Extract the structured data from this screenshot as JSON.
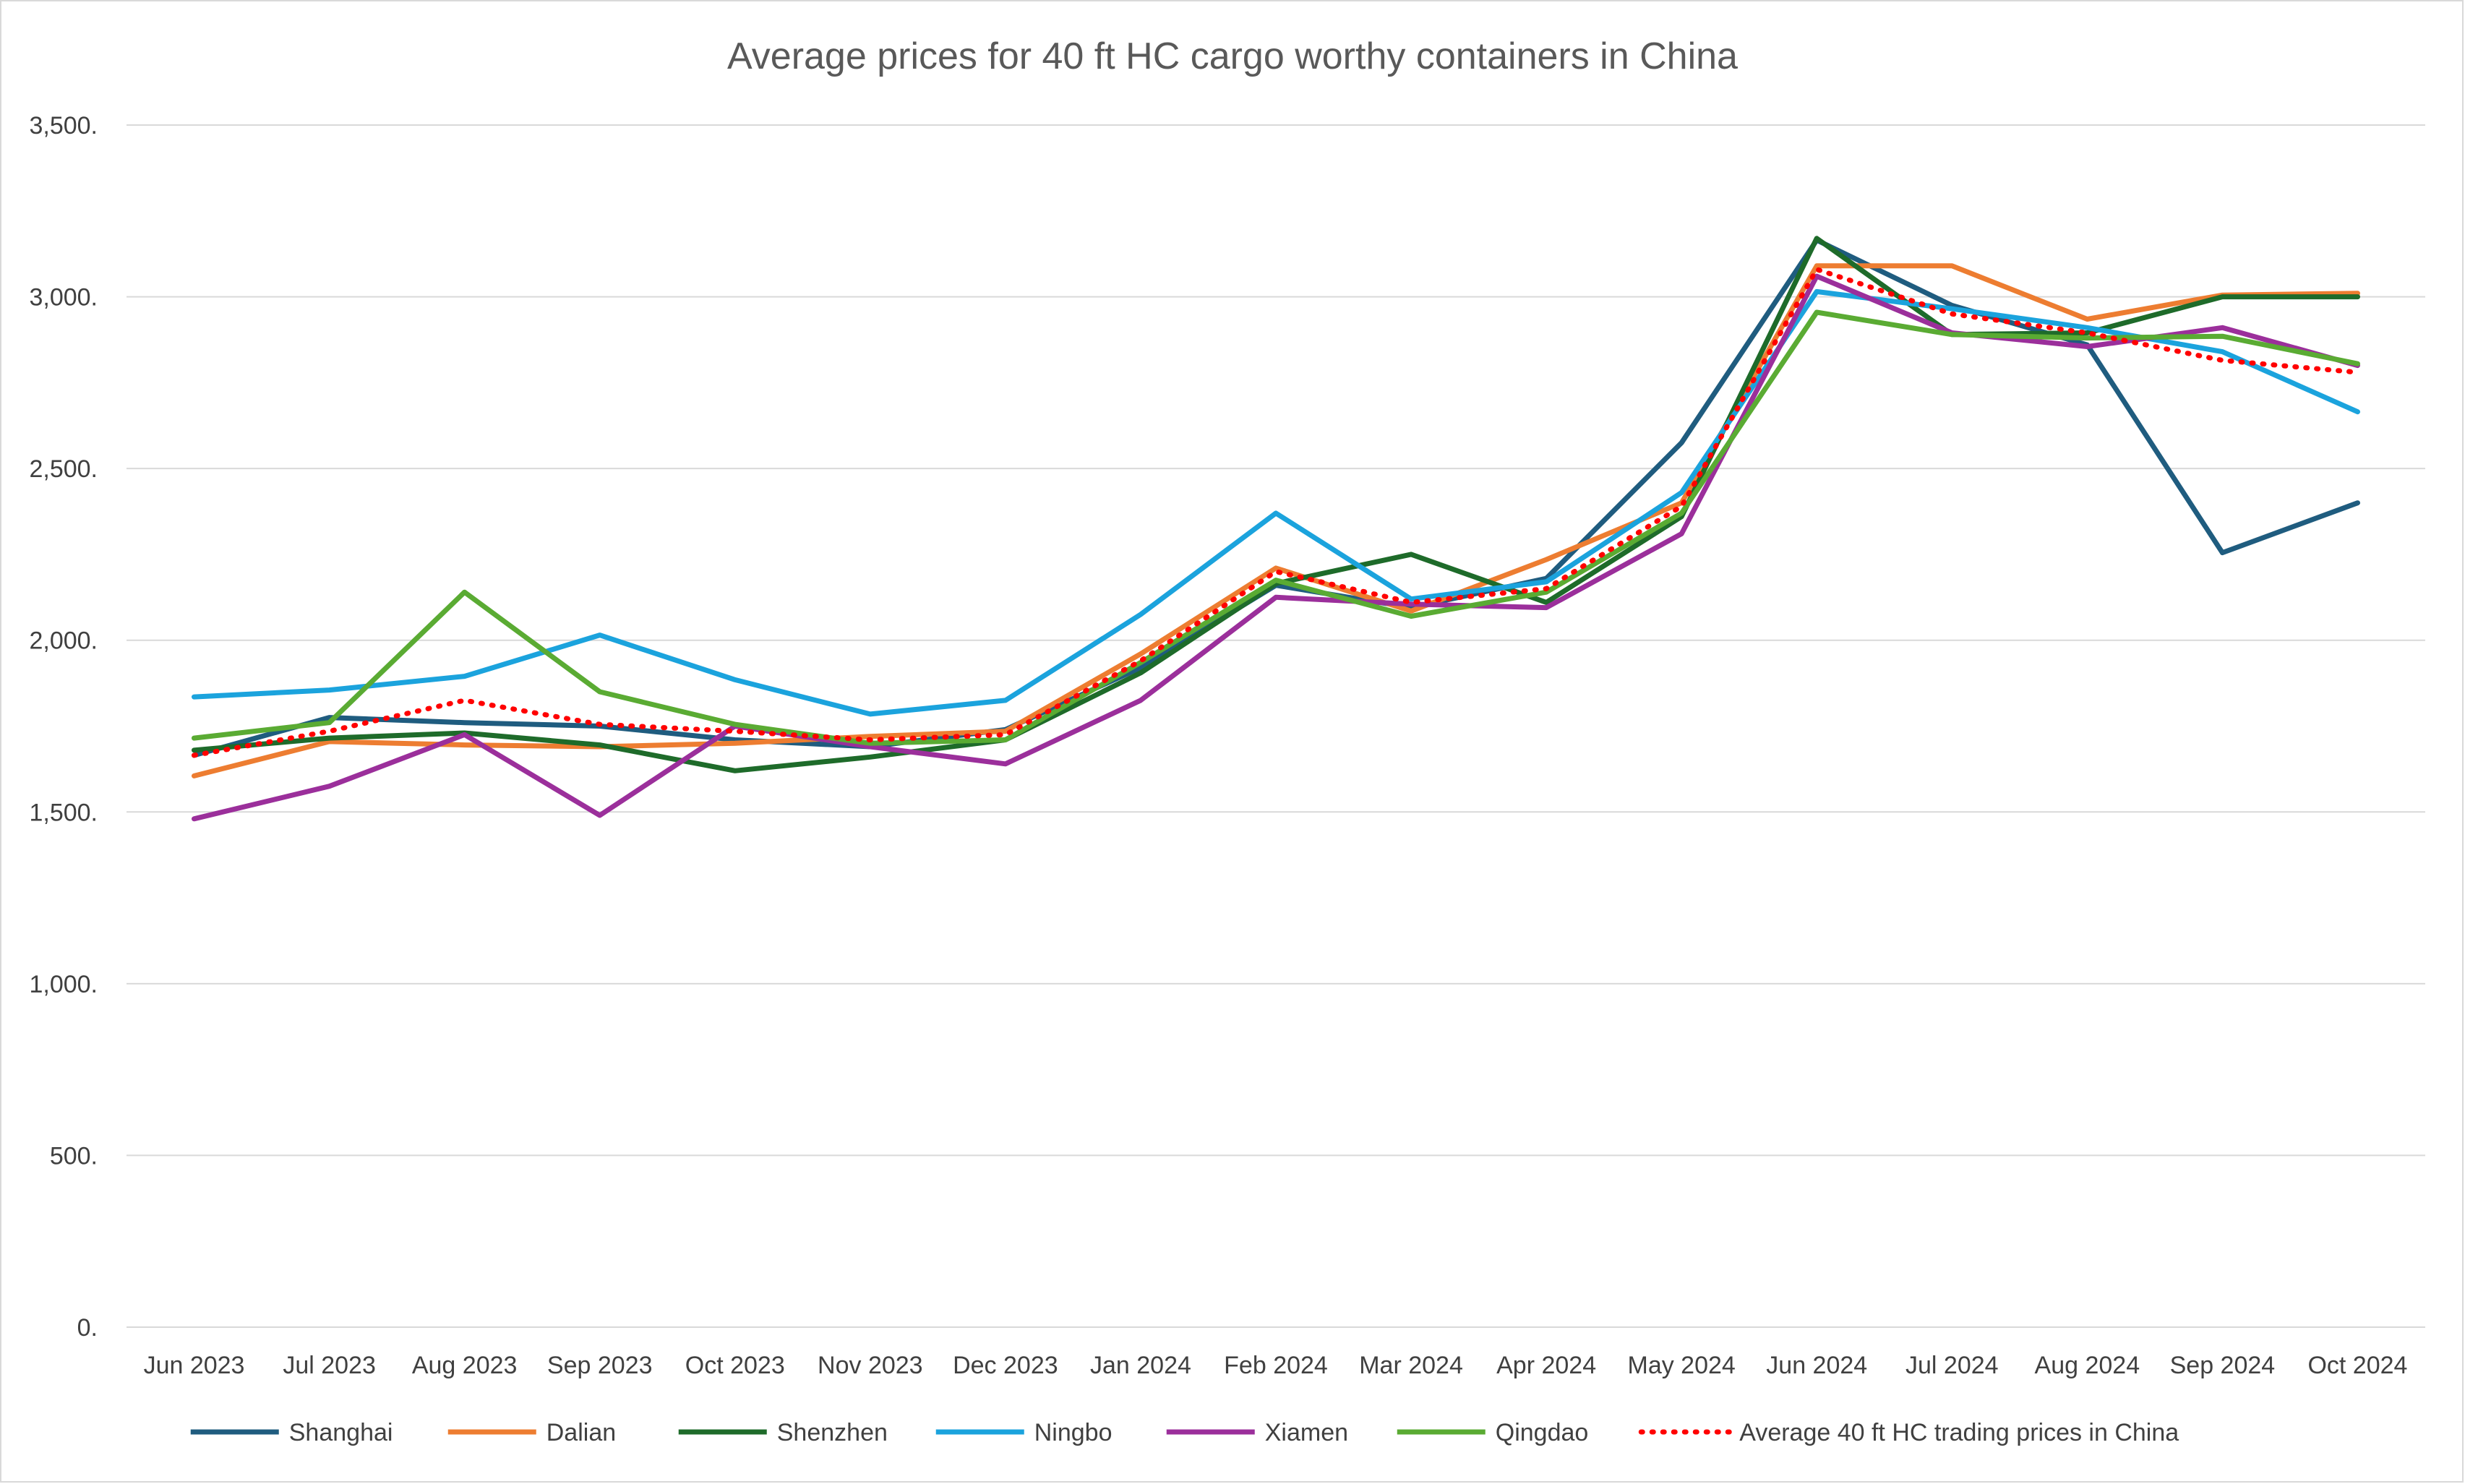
{
  "chart_data": {
    "type": "line",
    "title": "Average prices for 40 ft HC cargo worthy containers in China",
    "xlabel": "",
    "ylabel": "",
    "ylim": [
      0,
      3500
    ],
    "y_ticks": [
      "0.",
      "500.",
      "1,000.",
      "1,500.",
      "2,000.",
      "2,500.",
      "3,000.",
      "3,500."
    ],
    "y_tick_values": [
      0,
      500,
      1000,
      1500,
      2000,
      2500,
      3000,
      3500
    ],
    "grid": true,
    "legend_position": "bottom",
    "categories": [
      "Jun 2023",
      "Jul 2023",
      "Aug 2023",
      "Sep 2023",
      "Oct 2023",
      "Nov 2023",
      "Dec 2023",
      "Jan 2024",
      "Feb 2024",
      "Mar 2024",
      "Apr 2024",
      "May 2024",
      "Jun 2024",
      "Jul 2024",
      "Aug 2024",
      "Sep 2024",
      "Oct 2024"
    ],
    "series": [
      {
        "name": "Shanghai",
        "color": "#1f5c7f",
        "style": "solid",
        "values": [
          1665,
          1775,
          1760,
          1750,
          1710,
          1690,
          1740,
          1920,
          2160,
          2095,
          2180,
          2575,
          3165,
          2975,
          2860,
          2255,
          2400
        ]
      },
      {
        "name": "Dalian",
        "color": "#ed7d31",
        "style": "solid",
        "values": [
          1605,
          1705,
          1695,
          1690,
          1700,
          1720,
          1735,
          1960,
          2210,
          2085,
          2235,
          2400,
          3090,
          3090,
          2935,
          3005,
          3010
        ]
      },
      {
        "name": "Shenzhen",
        "color": "#1e6b2a",
        "style": "solid",
        "values": [
          1680,
          1715,
          1730,
          1695,
          1620,
          1660,
          1710,
          1905,
          2165,
          2250,
          2110,
          2360,
          3170,
          2890,
          2895,
          3000,
          3000
        ]
      },
      {
        "name": "Ningbo",
        "color": "#1ba3dd",
        "style": "solid",
        "values": [
          1835,
          1855,
          1895,
          2015,
          1885,
          1785,
          1825,
          2075,
          2370,
          2120,
          2170,
          2430,
          3015,
          2965,
          2910,
          2840,
          2665
        ]
      },
      {
        "name": "Xiamen",
        "color": "#9b2f9b",
        "style": "solid",
        "values": [
          1480,
          1575,
          1725,
          1490,
          1750,
          1690,
          1640,
          1825,
          2125,
          2105,
          2095,
          2310,
          3060,
          2895,
          2855,
          2910,
          2800
        ]
      },
      {
        "name": "Qingdao",
        "color": "#5aab33",
        "style": "solid",
        "values": [
          1715,
          1760,
          2140,
          1850,
          1755,
          1700,
          1710,
          1935,
          2175,
          2070,
          2140,
          2370,
          2955,
          2890,
          2880,
          2885,
          2805
        ]
      },
      {
        "name": "Average 40 ft HC trading prices in China",
        "color": "#ff0000",
        "style": "dotted",
        "values": [
          1665,
          1735,
          1825,
          1755,
          1735,
          1710,
          1725,
          1940,
          2200,
          2110,
          2150,
          2390,
          3080,
          2950,
          2895,
          2815,
          2780
        ]
      }
    ]
  }
}
